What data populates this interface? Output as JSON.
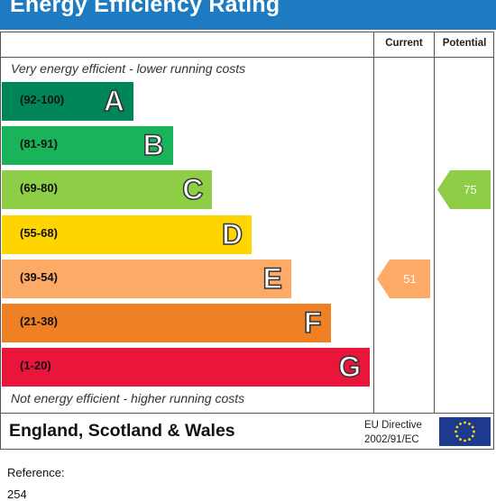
{
  "header": {
    "title": "Energy Efficiency Rating"
  },
  "columns": {
    "current": "Current",
    "potential": "Potential"
  },
  "notes": {
    "top": "Very energy efficient - lower running costs",
    "bottom": "Not energy efficient - higher running costs"
  },
  "chart_data": {
    "type": "bar",
    "categories": [
      "A",
      "B",
      "C",
      "D",
      "E",
      "F",
      "G"
    ],
    "ranges": [
      "(92-100)",
      "(81-91)",
      "(69-80)",
      "(55-68)",
      "(39-54)",
      "(21-38)",
      "(1-20)"
    ],
    "colors": [
      "#00855a",
      "#19b459",
      "#8dce46",
      "#ffd500",
      "#fcaa65",
      "#ef8023",
      "#e9153b"
    ],
    "current": {
      "value": 51,
      "band": "E",
      "color": "#fcaa65"
    },
    "potential": {
      "value": 75,
      "band": "C",
      "color": "#8dce46"
    }
  },
  "footer": {
    "region": "England, Scotland & Wales",
    "directive_line1": "EU Directive",
    "directive_line2": "2002/91/EC"
  },
  "reference": {
    "label": "Reference:",
    "value": "254"
  }
}
